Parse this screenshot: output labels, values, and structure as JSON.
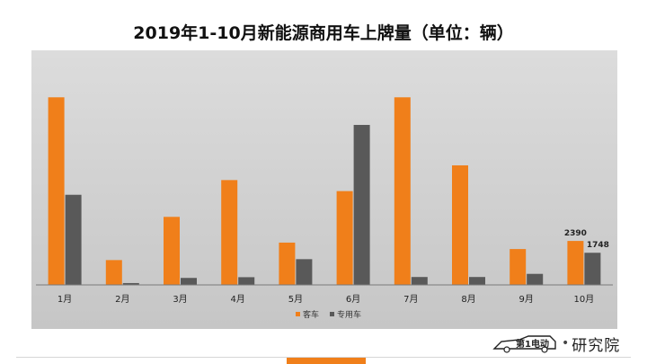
{
  "title": "2019年1-10月新能源商用车上牌量（单位：辆）",
  "logo": {
    "brand_glyph": "第1电动",
    "separator": "•",
    "text": "研究院"
  },
  "colors": {
    "bus": "#f07f1a",
    "special": "#595959",
    "panel": "#d0d0d0",
    "footer_accent": "#f07f1a"
  },
  "chart_data": {
    "type": "bar",
    "title": "2019年1-10月新能源商用车上牌量（单位：辆）",
    "categories": [
      "1月",
      "2月",
      "3月",
      "4月",
      "5月",
      "6月",
      "7月",
      "8月",
      "9月",
      "10月"
    ],
    "series": [
      {
        "name": "客车",
        "color": "#f07f1a",
        "values": [
          10200,
          1350,
          3700,
          5700,
          2300,
          5100,
          10200,
          6500,
          1950,
          2390
        ]
      },
      {
        "name": "专用车",
        "color": "#595959",
        "values": [
          4900,
          100,
          380,
          420,
          1400,
          8700,
          430,
          430,
          600,
          1748
        ]
      }
    ],
    "data_labels": [
      {
        "series": "客车",
        "category": "10月",
        "text": "2390"
      },
      {
        "series": "专用车",
        "category": "10月",
        "text": "1748"
      }
    ],
    "ylim": [
      0,
      10800
    ],
    "grid": false,
    "legend": "bottom-center"
  }
}
